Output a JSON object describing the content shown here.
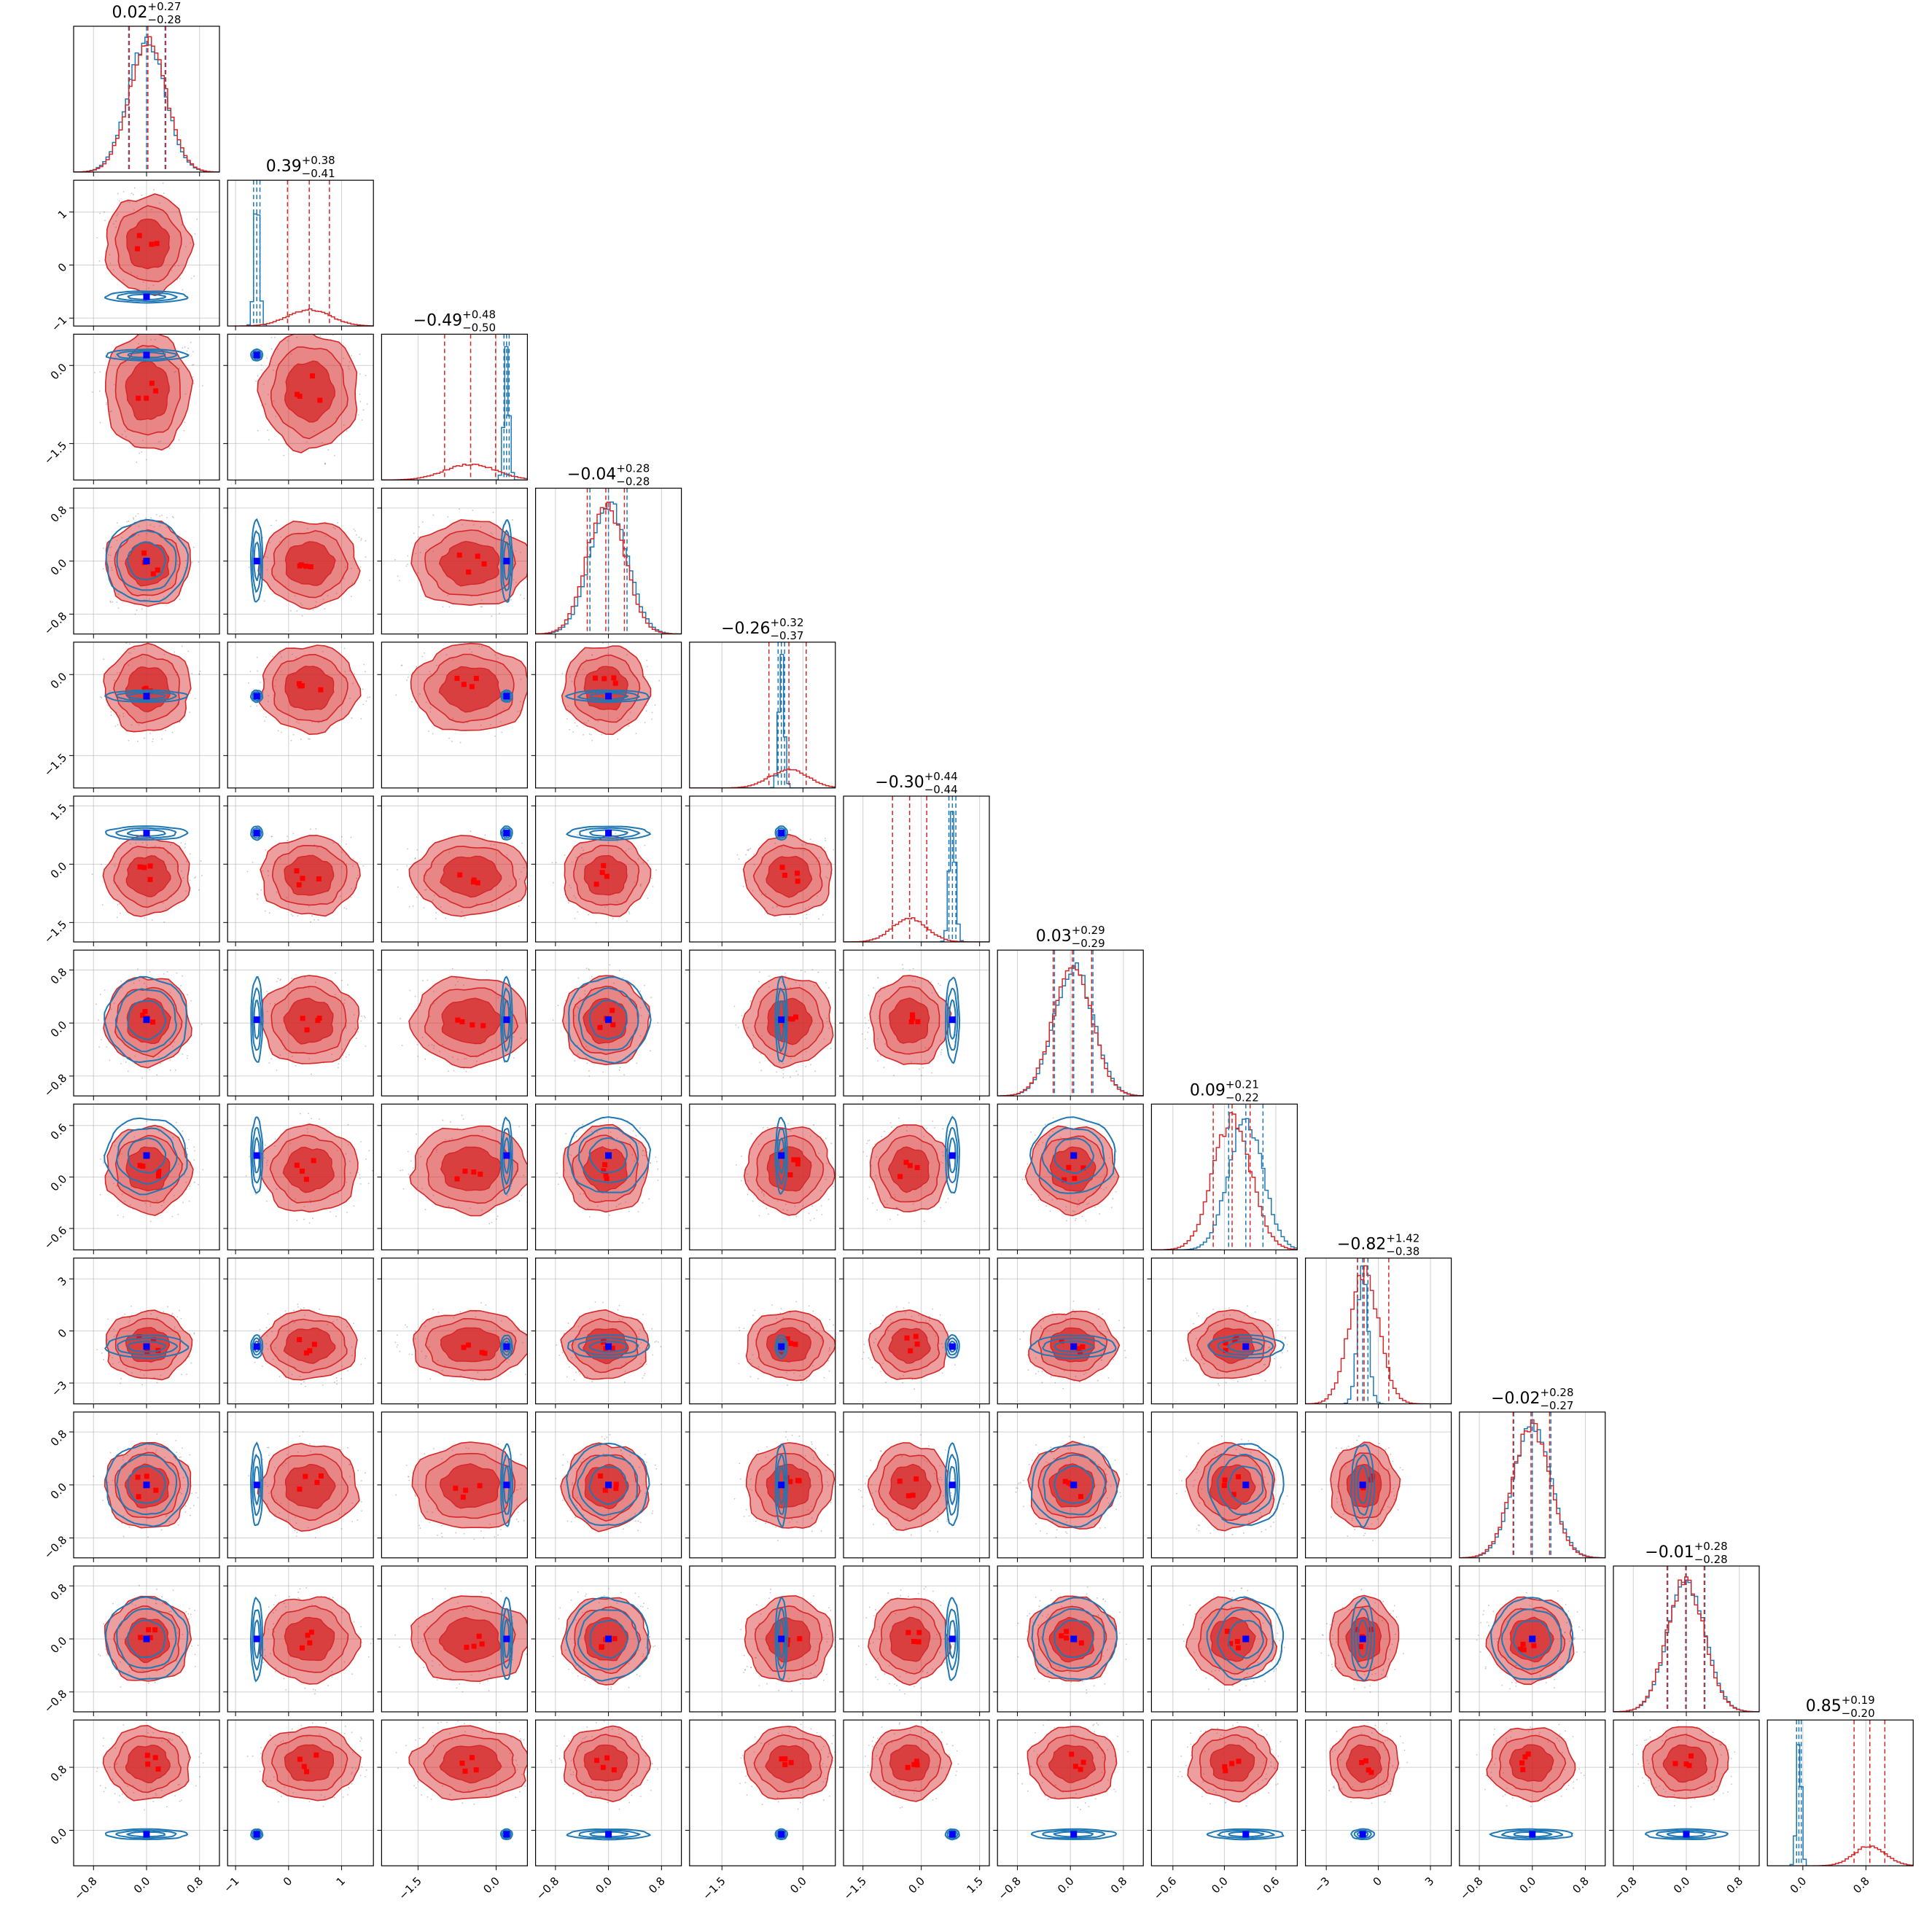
{
  "chart_data": {
    "type": "corner",
    "ndim": 12,
    "grid": true,
    "colors": {
      "red": "#d62728",
      "red_fill": "#d62728",
      "blue": "#1f77b4",
      "true_marker": "#0000ff",
      "red_marker": "#ff0000"
    },
    "titles": [
      {
        "median": "0.02",
        "plus": "+0.27",
        "minus": "−0.28"
      },
      {
        "median": "0.39",
        "plus": "+0.38",
        "minus": "−0.41"
      },
      {
        "median": "−0.49",
        "plus": "+0.48",
        "minus": "−0.50"
      },
      {
        "median": "−0.04",
        "plus": "+0.28",
        "minus": "−0.28"
      },
      {
        "median": "−0.26",
        "plus": "+0.32",
        "minus": "−0.37"
      },
      {
        "median": "−0.30",
        "plus": "+0.44",
        "minus": "−0.44"
      },
      {
        "median": "0.03",
        "plus": "+0.29",
        "minus": "−0.29"
      },
      {
        "median": "0.09",
        "plus": "+0.21",
        "minus": "−0.22"
      },
      {
        "median": "−0.82",
        "plus": "+1.42",
        "minus": "−0.38"
      },
      {
        "median": "−0.02",
        "plus": "+0.28",
        "minus": "−0.27"
      },
      {
        "median": "−0.01",
        "plus": "+0.28",
        "minus": "−0.28"
      },
      {
        "median": "0.85",
        "plus": "+0.19",
        "minus": "−0.20"
      }
    ],
    "ranges": [
      [
        -1.1,
        1.1
      ],
      [
        -1.15,
        1.6
      ],
      [
        -2.2,
        0.6
      ],
      [
        -1.1,
        1.1
      ],
      [
        -2.1,
        0.6
      ],
      [
        -2.0,
        1.75
      ],
      [
        -1.1,
        1.1
      ],
      [
        -0.85,
        0.85
      ],
      [
        -4.2,
        4.2
      ],
      [
        -1.1,
        1.1
      ],
      [
        -1.1,
        1.1
      ],
      [
        -0.45,
        1.4
      ]
    ],
    "ticks": [
      [
        {
          "v": -0.8,
          "label": "−0.8"
        },
        {
          "v": 0.0,
          "label": "0.0"
        },
        {
          "v": 0.8,
          "label": "0.8"
        }
      ],
      [
        {
          "v": -1,
          "label": "−1"
        },
        {
          "v": 0,
          "label": "0"
        },
        {
          "v": 1,
          "label": "1"
        }
      ],
      [
        {
          "v": -1.5,
          "label": "−1.5"
        },
        {
          "v": 0.0,
          "label": "0.0"
        }
      ],
      [
        {
          "v": -0.8,
          "label": "−0.8"
        },
        {
          "v": 0.0,
          "label": "0.0"
        },
        {
          "v": 0.8,
          "label": "0.8"
        }
      ],
      [
        {
          "v": -1.5,
          "label": "−1.5"
        },
        {
          "v": 0.0,
          "label": "0.0"
        }
      ],
      [
        {
          "v": -1.5,
          "label": "−1.5"
        },
        {
          "v": 0.0,
          "label": "0.0"
        },
        {
          "v": 1.5,
          "label": "1.5"
        }
      ],
      [
        {
          "v": -0.8,
          "label": "−0.8"
        },
        {
          "v": 0.0,
          "label": "0.0"
        },
        {
          "v": 0.8,
          "label": "0.8"
        }
      ],
      [
        {
          "v": -0.6,
          "label": "−0.6"
        },
        {
          "v": 0.0,
          "label": "0.0"
        },
        {
          "v": 0.6,
          "label": "0.6"
        }
      ],
      [
        {
          "v": -3,
          "label": "−3"
        },
        {
          "v": 0,
          "label": "0"
        },
        {
          "v": 3,
          "label": "3"
        }
      ],
      [
        {
          "v": -0.8,
          "label": "−0.8"
        },
        {
          "v": 0.0,
          "label": "0.0"
        },
        {
          "v": 0.8,
          "label": "0.8"
        }
      ],
      [
        {
          "v": -0.8,
          "label": "−0.8"
        },
        {
          "v": 0.0,
          "label": "0.0"
        },
        {
          "v": 0.8,
          "label": "0.8"
        }
      ],
      [
        {
          "v": 0.0,
          "label": "0.0"
        },
        {
          "v": 0.8,
          "label": "0.8"
        }
      ]
    ],
    "truth": [
      0.0,
      -0.6,
      0.2,
      0.0,
      -0.4,
      0.8,
      0.05,
      0.25,
      -0.9,
      0.0,
      0.0,
      -0.05
    ],
    "red_posterior": {
      "center": [
        0.02,
        0.39,
        -0.49,
        -0.04,
        -0.26,
        -0.3,
        0.03,
        0.09,
        -0.82,
        -0.02,
        -0.01,
        0.85
      ],
      "sigma": [
        0.28,
        0.4,
        0.49,
        0.28,
        0.35,
        0.44,
        0.29,
        0.22,
        0.85,
        0.28,
        0.28,
        0.2
      ]
    },
    "blue_posterior": {
      "center": [
        0.0,
        -0.6,
        0.2,
        0.0,
        -0.4,
        0.8,
        0.05,
        0.25,
        -0.9,
        0.0,
        0.0,
        -0.05
      ],
      "sigma": [
        0.28,
        0.05,
        0.05,
        0.28,
        0.05,
        0.08,
        0.29,
        0.2,
        0.3,
        0.28,
        0.28,
        0.03
      ]
    },
    "red_quantiles": [
      [
        -0.26,
        0.02,
        0.29
      ],
      [
        -0.02,
        0.39,
        0.77
      ],
      [
        -0.99,
        -0.49,
        -0.01
      ],
      [
        -0.32,
        -0.04,
        0.24
      ],
      [
        -0.63,
        -0.26,
        0.06
      ],
      [
        -0.74,
        -0.3,
        0.14
      ],
      [
        -0.26,
        0.03,
        0.32
      ],
      [
        -0.13,
        0.09,
        0.3
      ],
      [
        -1.2,
        -0.82,
        0.6
      ],
      [
        -0.29,
        -0.02,
        0.26
      ],
      [
        -0.29,
        -0.01,
        0.27
      ],
      [
        0.65,
        0.85,
        1.04
      ]
    ],
    "blue_quantiles": [
      [
        -0.27,
        0.0,
        0.28
      ],
      [
        -0.66,
        -0.6,
        -0.54
      ],
      [
        0.15,
        0.2,
        0.25
      ],
      [
        -0.28,
        0.0,
        0.28
      ],
      [
        -0.46,
        -0.4,
        -0.34
      ],
      [
        0.71,
        0.8,
        0.89
      ],
      [
        -0.24,
        0.05,
        0.34
      ],
      [
        0.05,
        0.25,
        0.45
      ],
      [
        -1.2,
        -0.9,
        -0.6
      ],
      [
        -0.28,
        0.0,
        0.28
      ],
      [
        -0.28,
        0.0,
        0.28
      ],
      [
        -0.08,
        -0.05,
        -0.02
      ]
    ]
  }
}
